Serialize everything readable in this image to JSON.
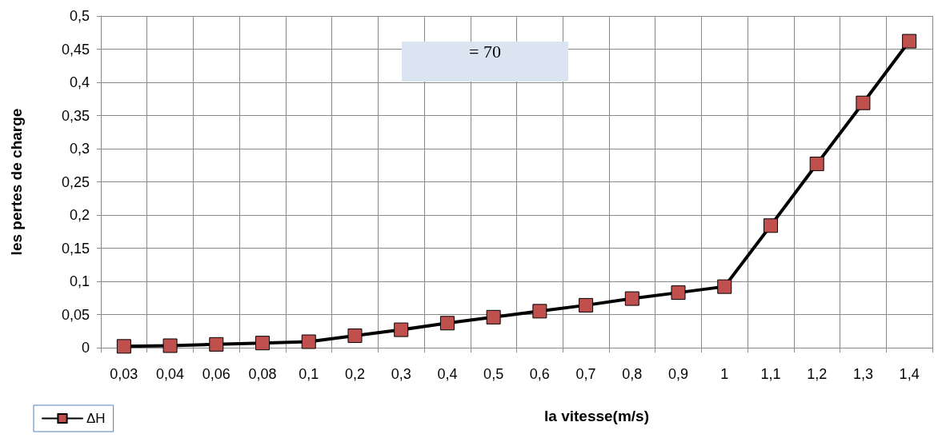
{
  "chart_data": {
    "type": "line",
    "xlabel": "la vitesse(m/s)",
    "ylabel": "les pertes de charge",
    "annotations": [
      "= 70"
    ],
    "categories": [
      "0,03",
      "0,04",
      "0,06",
      "0,08",
      "0,1",
      "0,2",
      "0,3",
      "0,4",
      "0,5",
      "0,6",
      "0,7",
      "0,8",
      "0,9",
      "1",
      "1,1",
      "1,2",
      "1,3",
      "1,4"
    ],
    "series": [
      {
        "name": "ΔH",
        "color": "#c0504d",
        "values": [
          0.002,
          0.003,
          0.005,
          0.007,
          0.009,
          0.018,
          0.027,
          0.037,
          0.046,
          0.055,
          0.064,
          0.074,
          0.083,
          0.092,
          0.184,
          0.277,
          0.369,
          0.462
        ]
      }
    ],
    "ylim": [
      0,
      0.5
    ],
    "yticks": [
      0,
      {
        "value": 0.05,
        "label": "0,05"
      },
      {
        "value": 0.1,
        "label": "0,1"
      },
      {
        "value": 0.15,
        "label": "0,15"
      },
      {
        "value": 0.2,
        "label": "0,2"
      },
      {
        "value": 0.25,
        "label": "0,25"
      },
      {
        "value": 0.3,
        "label": "0,3"
      },
      {
        "value": 0.35,
        "label": "0,35"
      },
      {
        "value": 0.4,
        "label": "0,4"
      },
      {
        "value": 0.45,
        "label": "0,45"
      },
      {
        "value": 0.5,
        "label": "0,5"
      }
    ],
    "grid": true,
    "legend": "bottom left",
    "marker": "square",
    "line_style": "solid"
  }
}
